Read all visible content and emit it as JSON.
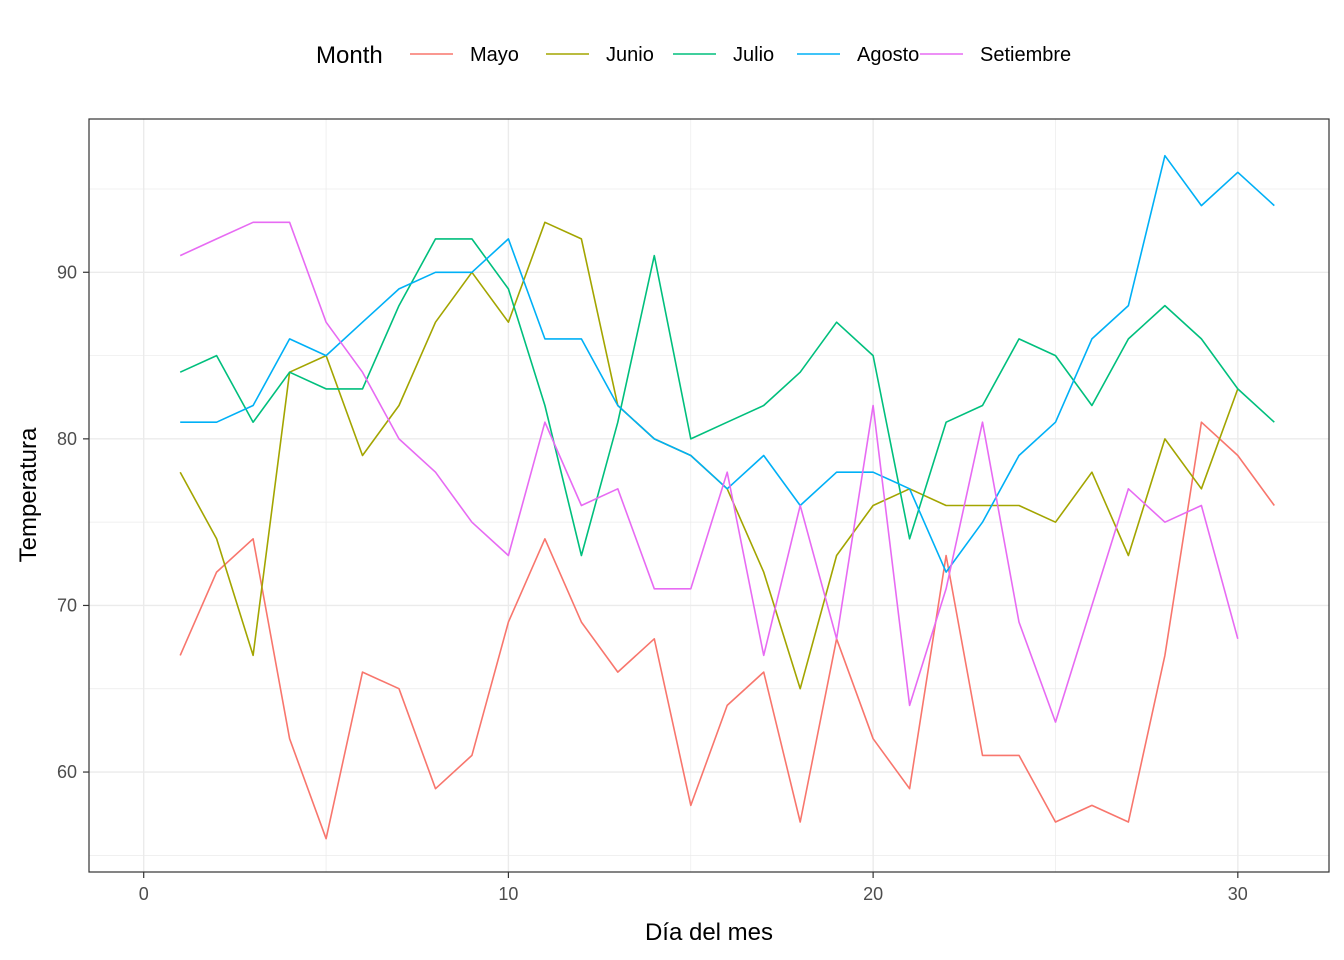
{
  "chart_data": {
    "type": "line",
    "xlabel": "Día del mes",
    "ylabel": "Temperatura",
    "xlim": [
      -1.5,
      32.5
    ],
    "ylim": [
      54,
      99.2
    ],
    "xticks": [
      0,
      10,
      20,
      30
    ],
    "yticks": [
      60,
      70,
      80,
      90
    ],
    "grid": true,
    "legend": {
      "title": "Month",
      "position": "top"
    },
    "series": [
      {
        "name": "Mayo",
        "color": "#F8766D",
        "x": [
          1,
          2,
          3,
          4,
          5,
          6,
          7,
          8,
          9,
          10,
          11,
          12,
          13,
          14,
          15,
          16,
          17,
          18,
          19,
          20,
          21,
          22,
          23,
          24,
          25,
          26,
          27,
          28,
          29,
          30,
          31
        ],
        "values": [
          67,
          72,
          74,
          62,
          56,
          66,
          65,
          59,
          61,
          69,
          74,
          69,
          66,
          68,
          58,
          64,
          66,
          57,
          68,
          62,
          59,
          73,
          61,
          61,
          57,
          58,
          57,
          67,
          81,
          79,
          76
        ]
      },
      {
        "name": "Junio",
        "color": "#A3A500",
        "x": [
          1,
          2,
          3,
          4,
          5,
          6,
          7,
          8,
          9,
          10,
          11,
          12,
          13,
          14,
          15,
          16,
          17,
          18,
          19,
          20,
          21,
          22,
          23,
          24,
          25,
          26,
          27,
          28,
          29,
          30
        ],
        "values": [
          78,
          74,
          67,
          84,
          85,
          79,
          82,
          87,
          90,
          87,
          93,
          92,
          82,
          80,
          79,
          77,
          72,
          65,
          73,
          76,
          77,
          76,
          76,
          76,
          75,
          78,
          73,
          80,
          77,
          83
        ]
      },
      {
        "name": "Julio",
        "color": "#00BF7D",
        "x": [
          1,
          2,
          3,
          4,
          5,
          6,
          7,
          8,
          9,
          10,
          11,
          12,
          13,
          14,
          15,
          16,
          17,
          18,
          19,
          20,
          21,
          22,
          23,
          24,
          25,
          26,
          27,
          28,
          29,
          30,
          31
        ],
        "values": [
          84,
          85,
          81,
          84,
          83,
          83,
          88,
          92,
          92,
          89,
          82,
          73,
          81,
          91,
          80,
          81,
          82,
          84,
          87,
          85,
          74,
          81,
          82,
          86,
          85,
          82,
          86,
          88,
          86,
          83,
          81
        ]
      },
      {
        "name": "Agosto",
        "color": "#00B0F6",
        "x": [
          1,
          2,
          3,
          4,
          5,
          6,
          7,
          8,
          9,
          10,
          11,
          12,
          13,
          14,
          15,
          16,
          17,
          18,
          19,
          20,
          21,
          22,
          23,
          24,
          25,
          26,
          27,
          28,
          29,
          30,
          31
        ],
        "values": [
          81,
          81,
          82,
          86,
          85,
          87,
          89,
          90,
          90,
          92,
          86,
          86,
          82,
          80,
          79,
          77,
          79,
          76,
          78,
          78,
          77,
          72,
          75,
          79,
          81,
          86,
          88,
          97,
          94,
          96,
          94
        ]
      },
      {
        "name": "Setiembre",
        "color": "#E76BF3",
        "x": [
          1,
          2,
          3,
          4,
          5,
          6,
          7,
          8,
          9,
          10,
          11,
          12,
          13,
          14,
          15,
          16,
          17,
          18,
          19,
          20,
          21,
          22,
          23,
          24,
          25,
          26,
          27,
          28,
          29,
          30
        ],
        "values": [
          91,
          92,
          93,
          93,
          87,
          84,
          80,
          78,
          75,
          73,
          81,
          76,
          77,
          71,
          71,
          78,
          67,
          76,
          68,
          82,
          64,
          71,
          81,
          69,
          63,
          70,
          77,
          75,
          76,
          68
        ]
      }
    ]
  }
}
